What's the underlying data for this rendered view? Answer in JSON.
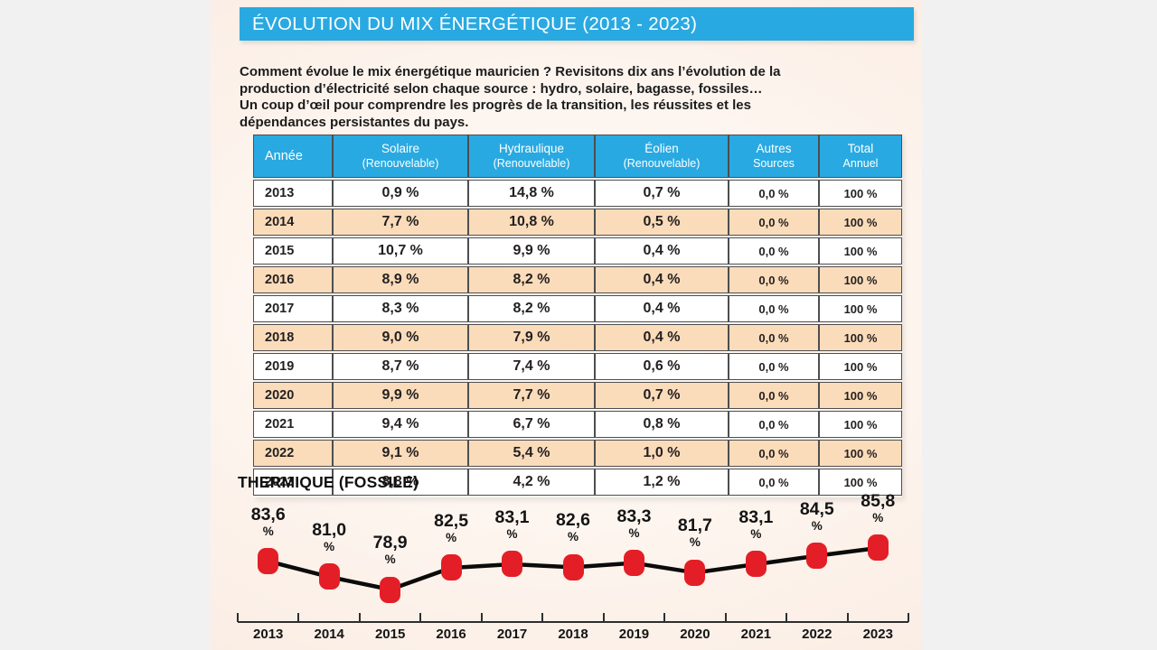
{
  "banner": {
    "title": "ÉVOLUTION DU MIX ÉNERGÉTIQUE (2013 - 2023)"
  },
  "intro": {
    "text": "Comment évolue le mix énergétique mauricien ? Revisitons dix ans l’évolution de la production d’électricité selon chaque source : hydro, solaire, bagasse, fossiles… Un coup d’œil pour comprendre les progrès de la transition, les réussites et les dépendances persistantes du pays."
  },
  "table": {
    "columns": [
      {
        "label": "Année",
        "sub": ""
      },
      {
        "label": "Solaire",
        "sub": "(Renouvelable)"
      },
      {
        "label": "Hydraulique",
        "sub": "(Renouvelable)"
      },
      {
        "label": "Éolien",
        "sub": "(Renouvelable)"
      },
      {
        "label": "Autres",
        "sub": "Sources"
      },
      {
        "label": "Total",
        "sub": "Annuel"
      }
    ],
    "rows": [
      [
        "2013",
        "0,9 %",
        "14,8 %",
        "0,7 %",
        "0,0 %",
        "100 %"
      ],
      [
        "2014",
        "7,7 %",
        "10,8 %",
        "0,5 %",
        "0,0 %",
        "100 %"
      ],
      [
        "2015",
        "10,7 %",
        "9,9 %",
        "0,4 %",
        "0,0 %",
        "100 %"
      ],
      [
        "2016",
        "8,9 %",
        "8,2 %",
        "0,4 %",
        "0,0 %",
        "100 %"
      ],
      [
        "2017",
        "8,3 %",
        "8,2 %",
        "0,4 %",
        "0,0 %",
        "100 %"
      ],
      [
        "2018",
        "9,0 %",
        "7,9 %",
        "0,4 %",
        "0,0 %",
        "100 %"
      ],
      [
        "2019",
        "8,7 %",
        "7,4 %",
        "0,6 %",
        "0,0 %",
        "100 %"
      ],
      [
        "2020",
        "9,9 %",
        "7,7 %",
        "0,7 %",
        "0,0 %",
        "100 %"
      ],
      [
        "2021",
        "9,4 %",
        "6,7 %",
        "0,8 %",
        "0,0 %",
        "100 %"
      ],
      [
        "2022",
        "9,1 %",
        "5,4 %",
        "1,0 %",
        "0,0 %",
        "100 %"
      ],
      [
        "2023",
        "8,8 %",
        "4,2 %",
        "1,2 %",
        "0,0 %",
        "100 %"
      ]
    ]
  },
  "chart_data": {
    "type": "line",
    "title": "THERMIQUE (FOSSILE)",
    "categories": [
      "2013",
      "2014",
      "2015",
      "2016",
      "2017",
      "2018",
      "2019",
      "2020",
      "2021",
      "2022",
      "2023"
    ],
    "series": [
      {
        "name": "Thermique (Fossile)",
        "values": [
          83.6,
          81.0,
          78.9,
          82.5,
          83.1,
          82.6,
          83.3,
          81.7,
          83.1,
          84.5,
          85.8
        ]
      }
    ],
    "point_labels": [
      "83,6",
      "81,0",
      "78,9",
      "82,5",
      "83,1",
      "82,6",
      "83,3",
      "81,7",
      "83,1",
      "84,5",
      "85,8"
    ],
    "unit": "%",
    "xlabel": "",
    "ylabel": "",
    "ylim": [
      78,
      87
    ],
    "grid": false,
    "legend_position": "none",
    "marker_shape": "rounded-square",
    "colors": {
      "marker": "#e41e26",
      "line": "#0b0b0b"
    }
  },
  "colors": {
    "banner_blue": "#29a9e1",
    "row_peach": "#fbdcba",
    "table_border": "#4d4e50",
    "marker_red": "#e41e26",
    "background_grey": "#f2f1f1"
  }
}
